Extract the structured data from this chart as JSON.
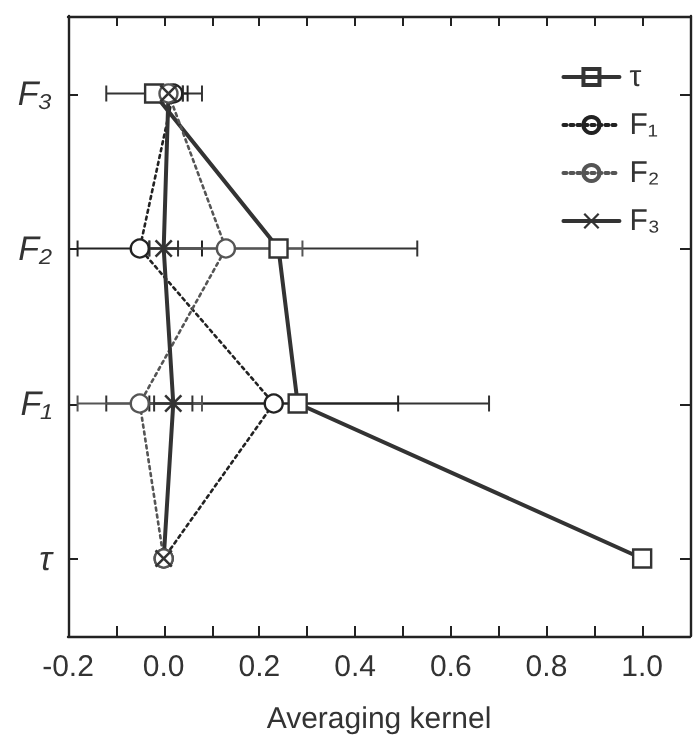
{
  "chart_data": {
    "type": "line",
    "orientation": "horizontal",
    "xlabel": "Averaging kernel",
    "categories": [
      "F₃",
      "F₂",
      "F₁",
      "τ"
    ],
    "xlim": [
      -0.2,
      1.1
    ],
    "xticks": [
      {
        "value": -0.2,
        "label": "-0.2"
      },
      {
        "value": -0.1,
        "label": null
      },
      {
        "value": 0,
        "label": "0.0"
      },
      {
        "value": 0.1,
        "label": null
      },
      {
        "value": 0.2,
        "label": "0.2"
      },
      {
        "value": 0.3,
        "label": null
      },
      {
        "value": 0.4,
        "label": "0.4"
      },
      {
        "value": 0.5,
        "label": null
      },
      {
        "value": 0.6,
        "label": "0.6"
      },
      {
        "value": 0.7,
        "label": null
      },
      {
        "value": 0.8,
        "label": "0.8"
      },
      {
        "value": 0.9,
        "label": null
      },
      {
        "value": 1.0,
        "label": "1.0"
      },
      {
        "value": 1.1,
        "label": null
      }
    ],
    "series": [
      {
        "name": "τ",
        "color": "#333333",
        "marker": "square",
        "line_style": "solid",
        "values": [
          -0.02,
          0.24,
          0.28,
          1.0
        ],
        "errors": [
          0.1,
          0.29,
          0.4,
          null
        ]
      },
      {
        "name": "F₁",
        "color": "#222222",
        "marker": "circle",
        "line_style": "dotted",
        "values": [
          0.02,
          -0.05,
          0.23,
          0.0
        ],
        "errors": [
          0.03,
          0.13,
          0.26,
          null
        ]
      },
      {
        "name": "F₂",
        "color": "#555555",
        "marker": "circle",
        "line_style": "dotted",
        "values": [
          0.01,
          0.13,
          -0.05,
          0.0
        ],
        "errors": [
          0.03,
          0.16,
          0.13,
          null
        ]
      },
      {
        "name": "F₃",
        "color": "#333333",
        "marker": "cross",
        "line_style": "solid",
        "values": [
          0.01,
          0.0,
          0.02,
          0.0
        ],
        "errors": [
          0.03,
          0.03,
          0.04,
          null
        ]
      }
    ],
    "legend": "top right"
  }
}
